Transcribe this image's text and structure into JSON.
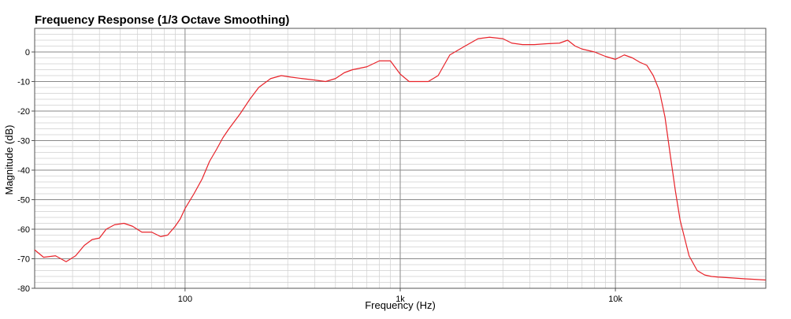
{
  "chart_data": {
    "type": "line",
    "title": "Frequency Response (1/3 Octave Smoothing)",
    "xlabel": "Frequency (Hz)",
    "ylabel": "Magnitude (dB)",
    "x_scale": "log",
    "xlim": [
      20,
      50000
    ],
    "ylim": [
      -80,
      8
    ],
    "grid": true,
    "colors": {
      "line": "#e8232a",
      "major_grid": "#8a8a8a",
      "minor_grid": "#cfcfcf",
      "axis": "#555555"
    },
    "x_ticks": [
      {
        "value": 100,
        "label": "100"
      },
      {
        "value": 1000,
        "label": "1k"
      },
      {
        "value": 10000,
        "label": "10k"
      }
    ],
    "y_ticks": [
      {
        "value": 0,
        "label": "0"
      },
      {
        "value": -10,
        "label": "-10"
      },
      {
        "value": -20,
        "label": "-20"
      },
      {
        "value": -30,
        "label": "-30"
      },
      {
        "value": -40,
        "label": "-40"
      },
      {
        "value": -50,
        "label": "-50"
      },
      {
        "value": -60,
        "label": "-60"
      },
      {
        "value": -70,
        "label": "-70"
      },
      {
        "value": -80,
        "label": "-80"
      }
    ],
    "series": [
      {
        "name": "",
        "x": [
          20,
          22,
          25,
          28,
          31,
          34,
          37,
          40,
          43,
          47,
          52,
          57,
          63,
          70,
          77,
          83,
          90,
          95,
          100,
          110,
          120,
          130,
          140,
          150,
          160,
          180,
          200,
          220,
          250,
          280,
          310,
          350,
          400,
          450,
          500,
          550,
          600,
          700,
          800,
          900,
          1000,
          1100,
          1200,
          1350,
          1500,
          1700,
          2000,
          2300,
          2600,
          3000,
          3300,
          3700,
          4200,
          4800,
          5500,
          6000,
          6500,
          7000,
          8000,
          9000,
          10000,
          11000,
          12000,
          13000,
          14000,
          15000,
          16000,
          17000,
          18000,
          19000,
          20000,
          22000,
          24000,
          26000,
          28000,
          30000,
          35000,
          40000,
          45000,
          50000
        ],
        "y": [
          -67,
          -69.5,
          -69,
          -71,
          -69,
          -65.5,
          -63.5,
          -63,
          -60,
          -58.5,
          -58,
          -59,
          -61,
          -61,
          -62.5,
          -62,
          -59,
          -56.5,
          -53,
          -48,
          -43,
          -37,
          -33,
          -29,
          -26,
          -21,
          -16,
          -12,
          -9,
          -8,
          -8.5,
          -9,
          -9.5,
          -10,
          -9,
          -7,
          -6,
          -5,
          -3,
          -3,
          -7.5,
          -10,
          -10,
          -10,
          -8,
          -1,
          2,
          4.5,
          5,
          4.5,
          3,
          2.5,
          2.5,
          2.8,
          3,
          4,
          2,
          1,
          0,
          -1.5,
          -2.5,
          -1,
          -2,
          -3.5,
          -4.5,
          -8,
          -13,
          -22,
          -35,
          -47,
          -57,
          -69,
          -74,
          -75.5,
          -76,
          -76.2,
          -76.5,
          -76.8,
          -77,
          -77.2
        ]
      }
    ]
  }
}
